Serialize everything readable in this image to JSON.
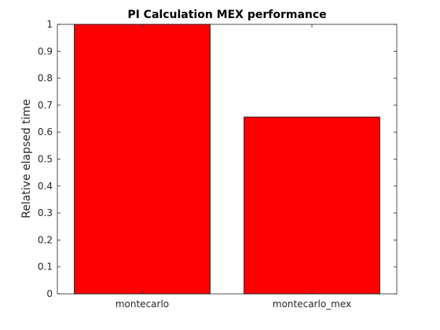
{
  "chart_data": {
    "type": "bar",
    "title": "PI Calculation MEX performance",
    "xlabel": "",
    "ylabel": "Relative elapsed time",
    "categories": [
      "montecarlo",
      "montecarlo_mex"
    ],
    "values": [
      1.0,
      0.656
    ],
    "ylim": [
      0,
      1
    ],
    "yticks": [
      0,
      0.1,
      0.2,
      0.3,
      0.4,
      0.5,
      0.6,
      0.7,
      0.8,
      0.9,
      1
    ],
    "ytick_labels": [
      "0",
      "0.1",
      "0.2",
      "0.3",
      "0.4",
      "0.5",
      "0.6",
      "0.7",
      "0.8",
      "0.9",
      "1"
    ],
    "grid": false,
    "legend": "none",
    "bar_color": "#ff0000",
    "bar_edge_color": "#000000",
    "axis_color": "#262626"
  }
}
